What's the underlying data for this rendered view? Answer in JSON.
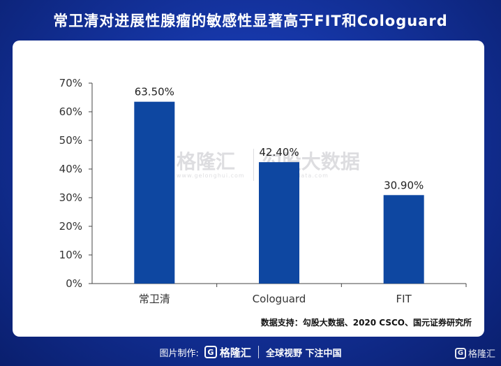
{
  "title": "常卫清对进展性腺瘤的敏感性显著高于FIT和Cologuard",
  "source_note": "数据支持：勾股大数据、2020 CSCO、国元证券研究所",
  "watermark": {
    "logo_glyph": "G",
    "brand": "格隆汇",
    "brand_url": "www.gelonghui.com",
    "partner": "勾股大数据",
    "partner_url": "www.gogudata.com"
  },
  "footer": {
    "made_by_label": "图片制作:",
    "logo_glyph": "G",
    "brand": "格隆汇",
    "slogan": "全球视野 下注中国"
  },
  "corner_brand": "格隆汇",
  "colors": {
    "bar": "#0e47a1",
    "background": "#14339f",
    "panel": "#ffffff"
  },
  "chart_data": {
    "type": "bar",
    "categories": [
      "常卫清",
      "Cologuard",
      "FIT"
    ],
    "values": [
      63.5,
      42.4,
      30.9
    ],
    "value_labels": [
      "63.50%",
      "42.40%",
      "30.90%"
    ],
    "y_ticks": [
      "0%",
      "10%",
      "20%",
      "30%",
      "40%",
      "50%",
      "60%",
      "70%"
    ],
    "ylim": [
      0,
      70
    ],
    "grid": false,
    "title": "常卫清对进展性腺瘤的敏感性显著高于FIT和Cologuard",
    "xlabel": "",
    "ylabel": ""
  }
}
